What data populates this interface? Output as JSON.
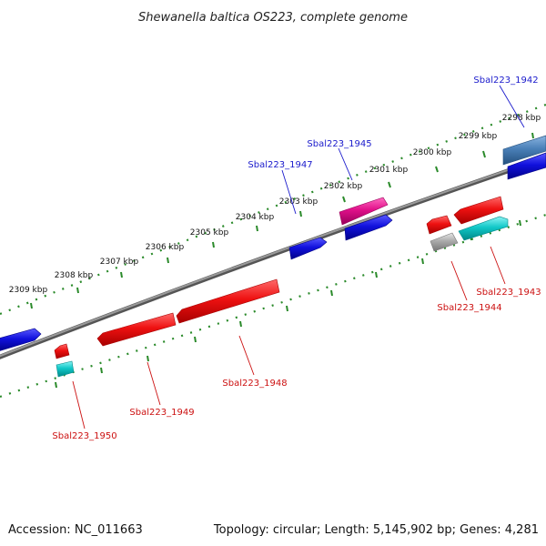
{
  "title": "Shewanella baltica OS223, complete genome",
  "footer": {
    "accession": "Accession: NC_011663",
    "summary": "Topology: circular; Length: 5,145,902 bp; Genes: 4,281"
  },
  "colors": {
    "backbone": "#7a7a7a",
    "tick": "#2a8a2a",
    "forward_label": "#1a1acc",
    "reverse_label": "#cc1111",
    "red": "#ee1111",
    "blue": "#1111dd",
    "magenta": "#e0108a",
    "cyan": "#11c8c8",
    "gray": "#aaaaaa",
    "steelblue": "#4a80b8"
  },
  "kbp_labels": [
    "2298 kbp",
    "2299 kbp",
    "2300 kbp",
    "2301 kbp",
    "2302 kbp",
    "2303 kbp",
    "2304 kbp",
    "2305 kbp",
    "2306 kbp",
    "2307 kbp",
    "2308 kbp",
    "2309 kbp"
  ],
  "gene_labels": {
    "sbal1942": "Sbal223_1942",
    "sbal1943": "Sbal223_1943",
    "sbal1944": "Sbal223_1944",
    "sbal1945": "Sbal223_1945",
    "sbal1947": "Sbal223_1947",
    "sbal1948": "Sbal223_1948",
    "sbal1949": "Sbal223_1949",
    "sbal1950": "Sbal223_1950"
  }
}
